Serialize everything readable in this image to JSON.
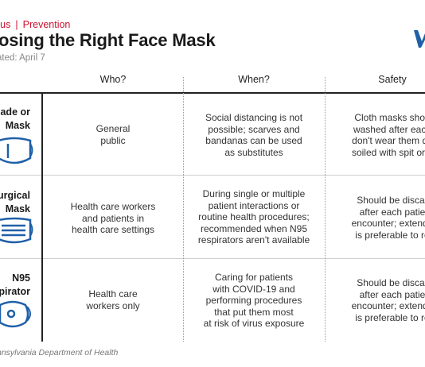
{
  "breadcrumb": {
    "left": "rus",
    "separator": "|",
    "right": "Prevention"
  },
  "title": "osing the Right Face Mask",
  "updated": "ated: April 7",
  "columns": [
    "Who?",
    "When?",
    "Safety"
  ],
  "rows": [
    {
      "label": [
        "ade or",
        "Mask"
      ],
      "icon": "cloth-mask-icon",
      "who": [
        "General",
        "public"
      ],
      "when": [
        "Social distancing is not",
        "possible; scarves and",
        "bandanas can be used",
        "as substitutes"
      ],
      "safety": [
        "Cloth masks shou",
        "washed after each",
        "don't wear them da",
        "soiled with spit or n"
      ]
    },
    {
      "label": [
        "urgical",
        "Mask"
      ],
      "icon": "surgical-mask-icon",
      "who": [
        "Health care workers",
        "and patients in",
        "health care settings"
      ],
      "when": [
        "During single or multiple",
        "patient interactions or",
        "routine health procedures;",
        "recommended when N95",
        "respirators aren't available"
      ],
      "safety": [
        "Should be discar",
        "after each patie",
        "encounter; extende",
        "is preferable to re"
      ]
    },
    {
      "label": [
        "N95",
        "pirator"
      ],
      "icon": "n95-respirator-icon",
      "who": [
        "Health care",
        "workers only"
      ],
      "when": [
        "Caring for patients",
        "with COVID-19 and",
        "performing procedures",
        "that put them most",
        "at risk of virus exposure"
      ],
      "safety": [
        "Should be discar",
        "after each patie",
        "encounter; extende",
        "is preferable to re"
      ]
    }
  ],
  "source": "nnsylvania Department of Health",
  "colors": {
    "accent": "#c8102e",
    "icon": "#1f5fa8",
    "logo": "#1f5fa8"
  }
}
